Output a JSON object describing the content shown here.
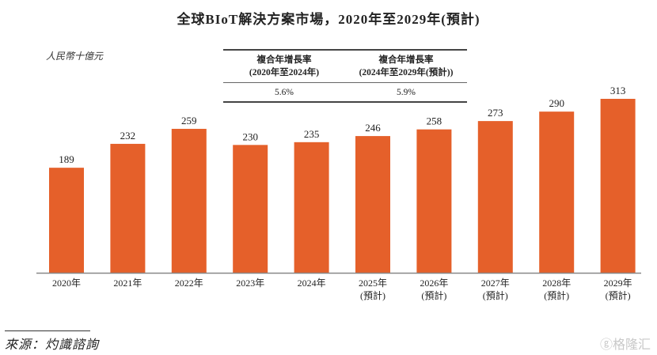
{
  "chart_data": {
    "type": "bar",
    "title": "全球BIoT解決方案市場，2020年至2029年(預計)",
    "ylabel": "人民幣十億元",
    "categories": [
      "2020年",
      "2021年",
      "2022年",
      "2023年",
      "2024年",
      "2025年",
      "2026年",
      "2027年",
      "2028年",
      "2029年"
    ],
    "category_notes": [
      "",
      "",
      "",
      "",
      "",
      "(預計)",
      "(預計)",
      "(預計)",
      "(預計)",
      "(預計)"
    ],
    "values": [
      189,
      232,
      259,
      230,
      235,
      246,
      258,
      273,
      290,
      313
    ],
    "ylim": [
      0,
      313
    ],
    "grid": false,
    "bar_color": "#E5602A",
    "cagr_table": [
      {
        "header_line1": "複合年增長率",
        "header_line2": "(2020年至2024年)",
        "value": "5.6%"
      },
      {
        "header_line1": "複合年增長率",
        "header_line2": "(2024年至2029年(預計))",
        "value": "5.9%"
      }
    ]
  },
  "footer": {
    "source": "來源：灼識諮詢"
  },
  "watermark": {
    "text": "格隆汇",
    "icon": "gelonghui-logo-icon"
  }
}
